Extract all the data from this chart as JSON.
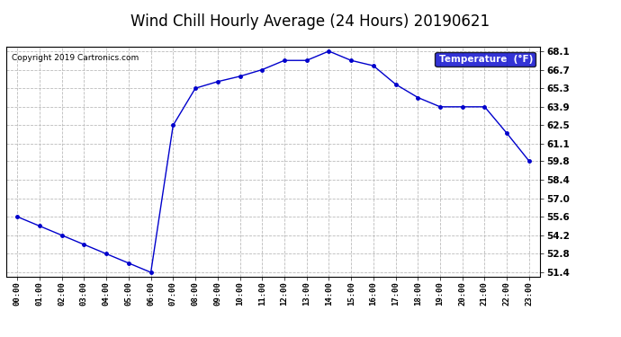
{
  "title": "Wind Chill Hourly Average (24 Hours) 20190621",
  "copyright": "Copyright 2019 Cartronics.com",
  "legend_label": "Temperature  (°F)",
  "hours": [
    "00:00",
    "01:00",
    "02:00",
    "03:00",
    "04:00",
    "05:00",
    "06:00",
    "07:00",
    "08:00",
    "09:00",
    "10:00",
    "11:00",
    "12:00",
    "13:00",
    "14:00",
    "15:00",
    "16:00",
    "17:00",
    "18:00",
    "19:00",
    "20:00",
    "21:00",
    "22:00",
    "23:00"
  ],
  "values": [
    55.6,
    54.9,
    54.2,
    53.5,
    52.8,
    52.1,
    51.4,
    62.5,
    65.3,
    65.8,
    66.2,
    66.7,
    67.4,
    67.4,
    68.1,
    67.4,
    67.0,
    65.6,
    64.6,
    63.9,
    63.9,
    63.9,
    61.9,
    59.8
  ],
  "ylim": [
    51.1,
    68.4
  ],
  "yticks": [
    51.4,
    52.8,
    54.2,
    55.6,
    57.0,
    58.4,
    59.8,
    61.1,
    62.5,
    63.9,
    65.3,
    66.7,
    68.1
  ],
  "line_color": "#0000cc",
  "marker_color": "#0000cc",
  "bg_color": "#ffffff",
  "grid_color": "#aaaaaa",
  "title_fontsize": 12,
  "legend_bg": "#0000cc",
  "legend_fg": "#ffffff",
  "fig_width": 6.9,
  "fig_height": 3.75,
  "dpi": 100
}
